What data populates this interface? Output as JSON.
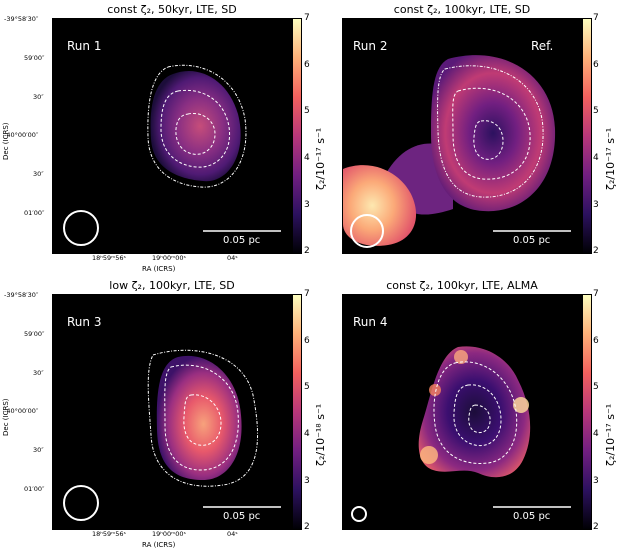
{
  "chart_data": [
    {
      "type": "heatmap",
      "title": "const ζ₂, 50kyr, LTE, SD",
      "run_label": "Run 1",
      "ref_label": "",
      "colorbar": {
        "label": "ζ₂/10⁻¹⁷ s⁻¹",
        "range": [
          2,
          7
        ],
        "ticks": [
          "2",
          "3",
          "4",
          "5",
          "6",
          "7"
        ],
        "colormap": "magma"
      },
      "scalebar": "0.05 pc",
      "ylabel": "Dec (ICRS)",
      "xlabel": "RA (ICRS)",
      "y_tick_labels": [
        "-39°58′30″",
        "59′00″",
        "30″",
        "-40°00′00″",
        "30″",
        "01′00″"
      ],
      "x_tick_labels": [
        "18ʰ59ᵐ56ˢ",
        "19ʰ00ᵐ00ˢ",
        "04ˢ"
      ]
    },
    {
      "type": "heatmap",
      "title": "const ζ₂, 100kyr, LTE, SD",
      "run_label": "Run 2",
      "ref_label": "Ref.",
      "colorbar": {
        "label": "ζ₂/10⁻¹⁷ s⁻¹",
        "range": [
          2,
          7
        ],
        "ticks": [
          "2",
          "3",
          "4",
          "5",
          "6",
          "7"
        ],
        "colormap": "magma"
      },
      "scalebar": "0.05 pc"
    },
    {
      "type": "heatmap",
      "title": "low ζ₂, 100kyr, LTE, SD",
      "run_label": "Run 3",
      "ref_label": "",
      "colorbar": {
        "label": "ζ₂/10⁻¹⁸ s⁻¹",
        "range": [
          2,
          7
        ],
        "ticks": [
          "2",
          "3",
          "4",
          "5",
          "6",
          "7"
        ],
        "colormap": "magma"
      },
      "scalebar": "0.05 pc",
      "ylabel": "Dec (ICRS)",
      "xlabel": "RA (ICRS)",
      "y_tick_labels": [
        "-39°58′30″",
        "59′00″",
        "30″",
        "-40°00′00″",
        "30″",
        "01′00″"
      ],
      "x_tick_labels": [
        "18ʰ59ᵐ56ˢ",
        "19ʰ00ᵐ00ˢ",
        "04ˢ"
      ]
    },
    {
      "type": "heatmap",
      "title": "const ζ₂, 100kyr, LTE, ALMA",
      "run_label": "Run 4",
      "ref_label": "",
      "colorbar": {
        "label": "ζ₂/10⁻¹⁷ s⁻¹",
        "range": [
          2,
          7
        ],
        "ticks": [
          "2",
          "3",
          "4",
          "5",
          "6",
          "7"
        ],
        "colormap": "magma"
      },
      "scalebar": "0.05 pc"
    }
  ]
}
